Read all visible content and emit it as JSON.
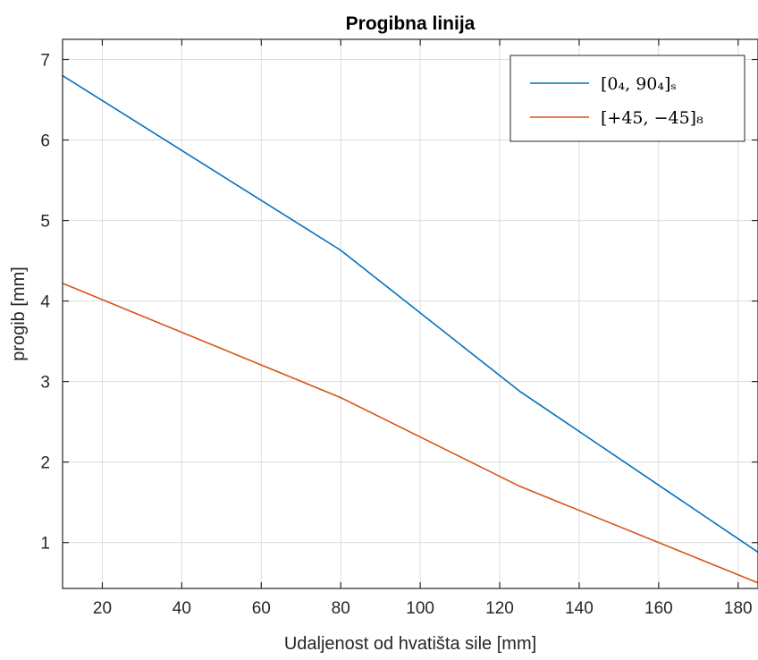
{
  "chart_data": {
    "type": "line",
    "title": "Progibna linija",
    "xlabel": "Udaljenost od hvatišta sile [mm]",
    "ylabel": "progib [mm]",
    "xlim": [
      10,
      185
    ],
    "ylim": [
      0.43,
      7.25
    ],
    "xticks": [
      20,
      40,
      60,
      80,
      100,
      120,
      140,
      160,
      180
    ],
    "yticks": [
      1,
      2,
      3,
      4,
      5,
      6,
      7
    ],
    "grid": true,
    "legend_position": "top-right",
    "series": [
      {
        "name": "[0₄, 90₄]ₛ",
        "color": "#0072BD",
        "x": [
          10,
          80,
          125,
          185
        ],
        "y": [
          6.8,
          4.63,
          2.88,
          0.88
        ]
      },
      {
        "name": "[+45, −45]₈",
        "color": "#D95319",
        "x": [
          10,
          80,
          125,
          185
        ],
        "y": [
          4.22,
          2.8,
          1.7,
          0.5
        ]
      }
    ]
  }
}
